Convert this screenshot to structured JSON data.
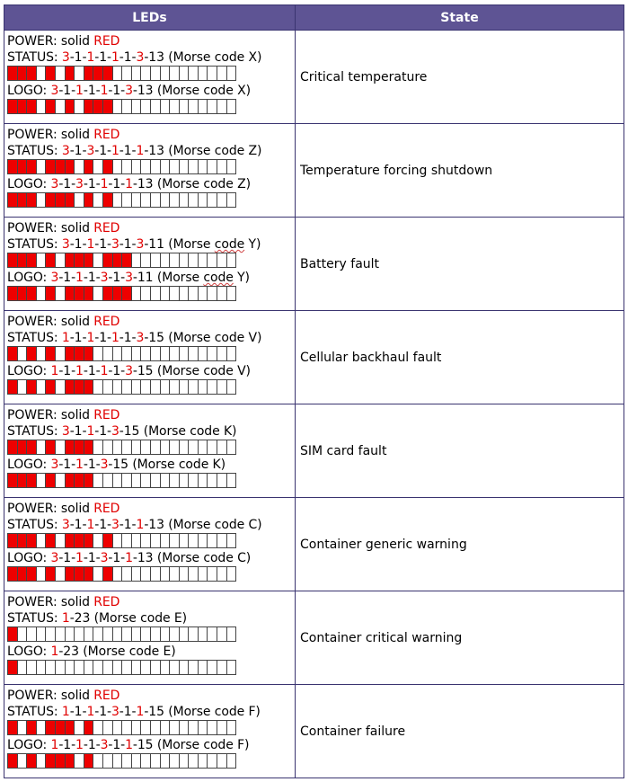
{
  "header": {
    "leds": "LEDs",
    "state": "State"
  },
  "power_prefix": "POWER: solid ",
  "power_color": "RED",
  "status_prefix": "STATUS: ",
  "logo_prefix": "LOGO: ",
  "colors": {
    "header_bg": "#5e5494",
    "led_on": "#ee0000",
    "red_text": "#e00000"
  },
  "rows": [
    {
      "state": "Critical temperature",
      "status": {
        "seq": [
          "3",
          "1",
          "1",
          "1",
          "1",
          "1",
          "3",
          "13"
        ],
        "red": [
          0,
          2,
          4,
          6
        ],
        "suffix": " (Morse code X)",
        "squiggle": ""
      },
      "logo": {
        "seq": [
          "3",
          "1",
          "1",
          "1",
          "1",
          "1",
          "3",
          "13"
        ],
        "red": [
          0,
          2,
          4,
          6
        ],
        "suffix": " (Morse code X)",
        "squiggle": ""
      }
    },
    {
      "state": "Temperature forcing shutdown",
      "status": {
        "seq": [
          "3",
          "1",
          "3",
          "1",
          "1",
          "1",
          "1",
          "13"
        ],
        "red": [
          0,
          2,
          4,
          6
        ],
        "suffix": " (Morse code Z)",
        "squiggle": ""
      },
      "logo": {
        "seq": [
          "3",
          "1",
          "3",
          "1",
          "1",
          "1",
          "1",
          "13"
        ],
        "red": [
          0,
          2,
          4,
          6
        ],
        "suffix": " (Morse code Z)",
        "squiggle": ""
      }
    },
    {
      "state": "Battery fault",
      "status": {
        "seq": [
          "3",
          "1",
          "1",
          "1",
          "3",
          "1",
          "3",
          "11"
        ],
        "red": [
          0,
          2,
          4,
          6
        ],
        "suffix": " (Morse code Y)",
        "squiggle": "code"
      },
      "logo": {
        "seq": [
          "3",
          "1",
          "1",
          "1",
          "3",
          "1",
          "3",
          "11"
        ],
        "red": [
          0,
          2,
          4,
          6
        ],
        "suffix": " (Morse code Y)",
        "squiggle": "code"
      }
    },
    {
      "state": "Cellular backhaul fault",
      "status": {
        "seq": [
          "1",
          "1",
          "1",
          "1",
          "1",
          "1",
          "3",
          "15"
        ],
        "red": [
          0,
          2,
          4,
          6
        ],
        "suffix": " (Morse code V)",
        "squiggle": ""
      },
      "logo": {
        "seq": [
          "1",
          "1",
          "1",
          "1",
          "1",
          "1",
          "3",
          "15"
        ],
        "red": [
          0,
          2,
          4,
          6
        ],
        "suffix": " (Morse code V)",
        "squiggle": ""
      }
    },
    {
      "state": "SIM card fault",
      "status": {
        "seq": [
          "3",
          "1",
          "1",
          "1",
          "3",
          "15"
        ],
        "red": [
          0,
          2,
          4
        ],
        "suffix": " (Morse code K)",
        "squiggle": ""
      },
      "logo": {
        "seq": [
          "3",
          "1",
          "1",
          "1",
          "3",
          "15"
        ],
        "red": [
          0,
          2,
          4
        ],
        "suffix": " (Morse code K)",
        "squiggle": ""
      }
    },
    {
      "state": "Container generic warning",
      "status": {
        "seq": [
          "3",
          "1",
          "1",
          "1",
          "3",
          "1",
          "1",
          "13"
        ],
        "red": [
          0,
          2,
          4,
          6
        ],
        "suffix": " (Morse code C)",
        "squiggle": ""
      },
      "logo": {
        "seq": [
          "3",
          "1",
          "1",
          "1",
          "3",
          "1",
          "1",
          "13"
        ],
        "red": [
          0,
          2,
          4,
          6
        ],
        "suffix": " (Morse code C)",
        "squiggle": ""
      }
    },
    {
      "state": "Container critical warning",
      "status": {
        "seq": [
          "1",
          "23"
        ],
        "red": [
          0
        ],
        "suffix": " (Morse code E)",
        "squiggle": ""
      },
      "logo": {
        "seq": [
          "1",
          "23"
        ],
        "red": [
          0
        ],
        "suffix": " (Morse code E)",
        "squiggle": ""
      }
    },
    {
      "state": "Container failure",
      "status": {
        "seq": [
          "1",
          "1",
          "1",
          "1",
          "3",
          "1",
          "1",
          "15"
        ],
        "red": [
          0,
          2,
          4,
          6
        ],
        "suffix": " (Morse code F)",
        "squiggle": ""
      },
      "logo": {
        "seq": [
          "1",
          "1",
          "1",
          "1",
          "3",
          "1",
          "1",
          "15"
        ],
        "red": [
          0,
          2,
          4,
          6
        ],
        "suffix": " (Morse code F)",
        "squiggle": ""
      }
    }
  ]
}
